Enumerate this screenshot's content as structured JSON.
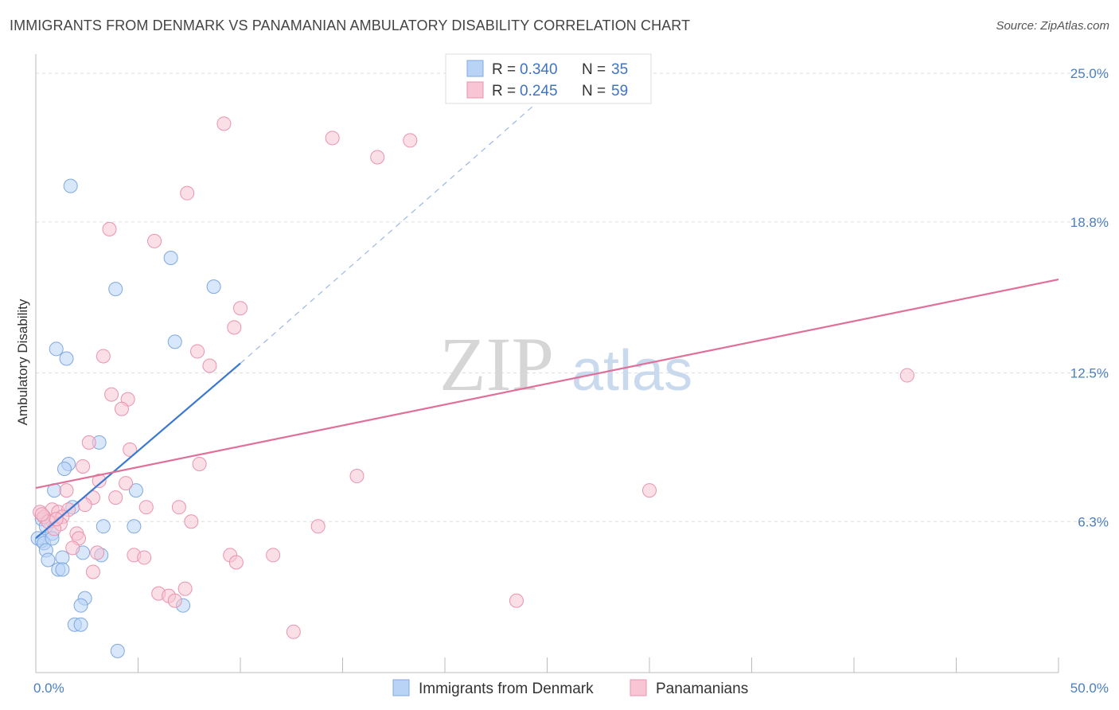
{
  "header": {
    "title": "IMMIGRANTS FROM DENMARK VS PANAMANIAN AMBULATORY DISABILITY CORRELATION CHART",
    "source": "Source: ZipAtlas.com"
  },
  "watermark": {
    "zip": "ZIP",
    "atlas": "atlas"
  },
  "colors": {
    "blue_fill": "#b8d3f5",
    "blue_stroke": "#7fa9df",
    "blue_line": "#3b78d0",
    "pink_fill": "#f8c5d4",
    "pink_stroke": "#e993ad",
    "pink_line": "#e0709a",
    "grid": "#dddddd",
    "tick_text": "#4a7fc1"
  },
  "legend": {
    "rows": [
      {
        "r_label": "R = ",
        "r_value": "0.340",
        "n_label": "N = ",
        "n_value": "35"
      },
      {
        "r_label": "R = ",
        "r_value": "0.245",
        "n_label": "N = ",
        "n_value": "59"
      }
    ]
  },
  "chart_data": {
    "type": "scatter",
    "title": "IMMIGRANTS FROM DENMARK VS PANAMANIAN AMBULATORY DISABILITY CORRELATION CHART",
    "xlabel": "",
    "ylabel": "Ambulatory Disability",
    "xlim": [
      0,
      50
    ],
    "ylim": [
      0,
      25.8
    ],
    "x_tick_labels": [
      {
        "value": 0,
        "label": "0.0%"
      },
      {
        "value": 50,
        "label": "50.0%"
      }
    ],
    "y_tick_labels": [
      {
        "value": 6.3,
        "label": "6.3%"
      },
      {
        "value": 12.5,
        "label": "12.5%"
      },
      {
        "value": 18.8,
        "label": "18.8%"
      },
      {
        "value": 25.0,
        "label": "25.0%"
      }
    ],
    "grid": true,
    "legend_position": "top-center",
    "series": [
      {
        "name": "Immigrants from Denmark",
        "color": "#b8d3f5",
        "points": [
          [
            1.7,
            20.3
          ],
          [
            6.6,
            17.3
          ],
          [
            3.9,
            16.0
          ],
          [
            8.7,
            16.1
          ],
          [
            1.0,
            13.5
          ],
          [
            1.5,
            13.1
          ],
          [
            6.8,
            13.8
          ],
          [
            3.1,
            9.6
          ],
          [
            1.6,
            8.7
          ],
          [
            1.4,
            8.5
          ],
          [
            0.9,
            7.6
          ],
          [
            4.9,
            7.6
          ],
          [
            1.8,
            6.9
          ],
          [
            0.3,
            6.4
          ],
          [
            0.5,
            6.1
          ],
          [
            3.3,
            6.1
          ],
          [
            4.8,
            6.1
          ],
          [
            0.8,
            5.8
          ],
          [
            0.1,
            5.6
          ],
          [
            0.3,
            5.5
          ],
          [
            0.4,
            5.4
          ],
          [
            0.8,
            5.6
          ],
          [
            0.5,
            5.1
          ],
          [
            2.3,
            5.0
          ],
          [
            3.2,
            4.9
          ],
          [
            0.6,
            4.7
          ],
          [
            1.3,
            4.8
          ],
          [
            1.1,
            4.3
          ],
          [
            1.3,
            4.3
          ],
          [
            2.4,
            3.1
          ],
          [
            2.2,
            2.8
          ],
          [
            7.2,
            2.8
          ],
          [
            1.9,
            2.0
          ],
          [
            2.2,
            2.0
          ],
          [
            4.0,
            0.9
          ]
        ],
        "trend_solid": [
          [
            0.0,
            5.6
          ],
          [
            10.0,
            12.9
          ]
        ],
        "trend_dashed": [
          [
            10.0,
            12.9
          ],
          [
            26.0,
            24.9
          ]
        ]
      },
      {
        "name": "Panamanians",
        "color": "#f8c5d4",
        "points": [
          [
            9.2,
            22.9
          ],
          [
            14.5,
            22.3
          ],
          [
            18.3,
            22.2
          ],
          [
            16.7,
            21.5
          ],
          [
            7.4,
            20.0
          ],
          [
            3.6,
            18.5
          ],
          [
            5.8,
            18.0
          ],
          [
            10.0,
            15.2
          ],
          [
            9.7,
            14.4
          ],
          [
            7.9,
            13.4
          ],
          [
            3.3,
            13.2
          ],
          [
            8.5,
            12.8
          ],
          [
            42.6,
            12.4
          ],
          [
            3.7,
            11.6
          ],
          [
            4.5,
            11.4
          ],
          [
            4.2,
            11.0
          ],
          [
            2.6,
            9.6
          ],
          [
            4.6,
            9.3
          ],
          [
            8.0,
            8.7
          ],
          [
            2.3,
            8.6
          ],
          [
            15.7,
            8.2
          ],
          [
            3.1,
            8.0
          ],
          [
            4.4,
            7.9
          ],
          [
            1.5,
            7.6
          ],
          [
            30.0,
            7.6
          ],
          [
            2.8,
            7.3
          ],
          [
            3.9,
            7.3
          ],
          [
            2.4,
            7.0
          ],
          [
            5.4,
            6.9
          ],
          [
            7.0,
            6.9
          ],
          [
            0.2,
            6.7
          ],
          [
            0.8,
            6.8
          ],
          [
            1.1,
            6.7
          ],
          [
            1.6,
            6.8
          ],
          [
            0.4,
            6.5
          ],
          [
            1.3,
            6.5
          ],
          [
            0.6,
            6.3
          ],
          [
            1.2,
            6.2
          ],
          [
            7.6,
            6.3
          ],
          [
            13.8,
            6.1
          ],
          [
            0.9,
            6.0
          ],
          [
            2.0,
            5.8
          ],
          [
            2.1,
            5.6
          ],
          [
            1.8,
            5.2
          ],
          [
            3.0,
            5.0
          ],
          [
            4.8,
            4.9
          ],
          [
            5.3,
            4.8
          ],
          [
            9.5,
            4.9
          ],
          [
            11.6,
            4.9
          ],
          [
            9.8,
            4.6
          ],
          [
            2.8,
            4.2
          ],
          [
            7.3,
            3.5
          ],
          [
            6.0,
            3.3
          ],
          [
            6.5,
            3.2
          ],
          [
            6.8,
            3.0
          ],
          [
            23.5,
            3.0
          ],
          [
            12.6,
            1.7
          ],
          [
            0.3,
            6.6
          ],
          [
            1.0,
            6.4
          ]
        ],
        "trend_solid": [
          [
            0.0,
            7.7
          ],
          [
            50.0,
            16.4
          ]
        ]
      }
    ]
  }
}
